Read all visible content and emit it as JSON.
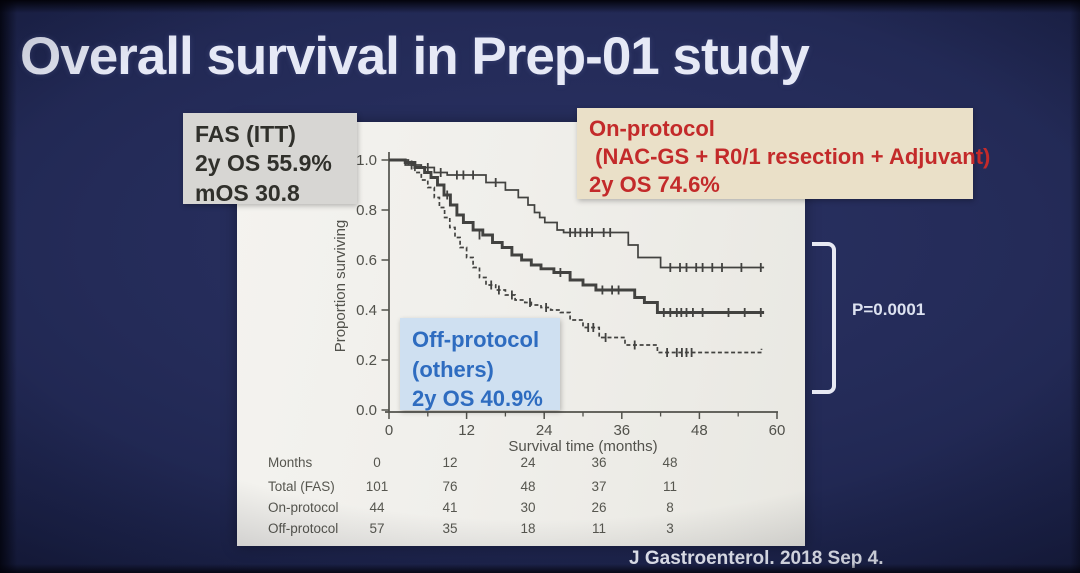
{
  "slide": {
    "title": "Overall survival in Prep-01 study",
    "citation": "J Gastroenterol. 2018 Sep 4."
  },
  "annotations": {
    "fas_box": {
      "lines": [
        "FAS (ITT)",
        "2y OS 55.9%",
        "mOS 30.8"
      ]
    },
    "on_protocol_box": {
      "lines": [
        "On-protocol",
        " (NAC-GS + R0/1 resection + Adjuvant)",
        "2y OS 74.6%"
      ]
    },
    "off_protocol_box": {
      "lines": [
        "Off-protocol",
        "(others)",
        "2y OS 40.9%"
      ]
    },
    "p_value": "P=0.0001"
  },
  "colors": {
    "background_navy": "#242b58",
    "panel_white": "#f0efeb",
    "fas_box_bg": "#d7d6d3",
    "on_box_bg": "#eae0c8",
    "on_text_red": "#c32a2a",
    "off_box_bg": "#cfe0f1",
    "off_text_blue": "#2e6cc0",
    "curve_black": "#343432",
    "axis_gray": "#45453f",
    "title_white": "#e6e9f6"
  },
  "chart_data": {
    "type": "line",
    "subtype": "kaplan-meier-step",
    "xlabel": "Survival time (months)",
    "ylabel": "Proportion surviving",
    "xlim": [
      0,
      60
    ],
    "ylim": [
      0.0,
      1.0
    ],
    "xticks": [
      0,
      12,
      24,
      36,
      48,
      60
    ],
    "xticks_minor": [
      6,
      18,
      30,
      42,
      54
    ],
    "yticks": [
      0.0,
      0.2,
      0.4,
      0.6,
      0.8,
      1.0
    ],
    "grid": false,
    "legend_position": "none",
    "series": [
      {
        "name": "On-protocol",
        "style": "solid-thin",
        "two_year_os_pct": 74.6,
        "points": [
          [
            0,
            1.0
          ],
          [
            3,
            0.98
          ],
          [
            5,
            0.97
          ],
          [
            7,
            0.95
          ],
          [
            9,
            0.94
          ],
          [
            15,
            0.91
          ],
          [
            18,
            0.88
          ],
          [
            20,
            0.85
          ],
          [
            21.5,
            0.82
          ],
          [
            22.5,
            0.79
          ],
          [
            23.3,
            0.77
          ],
          [
            24.1,
            0.75
          ],
          [
            26,
            0.72
          ],
          [
            27,
            0.71
          ],
          [
            37,
            0.66
          ],
          [
            38.5,
            0.61
          ],
          [
            42,
            0.57
          ],
          [
            58,
            0.57
          ]
        ],
        "censor_marks": [
          [
            3.5,
            0.98
          ],
          [
            6,
            0.97
          ],
          [
            8,
            0.95
          ],
          [
            10.5,
            0.94
          ],
          [
            11.5,
            0.94
          ],
          [
            13,
            0.94
          ],
          [
            16.5,
            0.91
          ],
          [
            28,
            0.71
          ],
          [
            28.8,
            0.71
          ],
          [
            29.6,
            0.71
          ],
          [
            30.6,
            0.71
          ],
          [
            31.4,
            0.71
          ],
          [
            33.2,
            0.71
          ],
          [
            34.2,
            0.71
          ],
          [
            43.5,
            0.57
          ],
          [
            45,
            0.57
          ],
          [
            46,
            0.57
          ],
          [
            47.5,
            0.57
          ],
          [
            48.5,
            0.57
          ],
          [
            50,
            0.57
          ],
          [
            51.5,
            0.57
          ],
          [
            54.5,
            0.57
          ],
          [
            57.5,
            0.57
          ]
        ]
      },
      {
        "name": "Total (FAS)",
        "style": "solid-thick",
        "two_year_os_pct": 55.9,
        "median_os_months": 30.8,
        "points": [
          [
            0,
            1.0
          ],
          [
            2.5,
            0.99
          ],
          [
            4,
            0.97
          ],
          [
            5.5,
            0.95
          ],
          [
            6.5,
            0.93
          ],
          [
            7.5,
            0.9
          ],
          [
            8.5,
            0.86
          ],
          [
            9.5,
            0.82
          ],
          [
            10.5,
            0.78
          ],
          [
            11.5,
            0.75
          ],
          [
            13,
            0.72
          ],
          [
            14.5,
            0.7
          ],
          [
            16,
            0.67
          ],
          [
            17.5,
            0.65
          ],
          [
            19,
            0.62
          ],
          [
            20.5,
            0.6
          ],
          [
            22,
            0.58
          ],
          [
            23.5,
            0.565
          ],
          [
            25.5,
            0.55
          ],
          [
            28,
            0.52
          ],
          [
            30,
            0.5
          ],
          [
            32,
            0.48
          ],
          [
            38,
            0.45
          ],
          [
            39.5,
            0.43
          ],
          [
            41.5,
            0.39
          ],
          [
            58,
            0.39
          ]
        ],
        "censor_marks": [
          [
            9,
            0.86
          ],
          [
            14,
            0.7
          ],
          [
            26.5,
            0.55
          ],
          [
            33,
            0.48
          ],
          [
            34.5,
            0.48
          ],
          [
            35.5,
            0.48
          ],
          [
            42.5,
            0.39
          ],
          [
            43.5,
            0.39
          ],
          [
            44.5,
            0.39
          ],
          [
            45.2,
            0.39
          ],
          [
            46,
            0.39
          ],
          [
            47,
            0.39
          ],
          [
            48.5,
            0.39
          ],
          [
            52.5,
            0.39
          ],
          [
            55,
            0.39
          ],
          [
            57.5,
            0.39
          ]
        ]
      },
      {
        "name": "Off-protocol",
        "style": "dashed",
        "two_year_os_pct": 40.9,
        "points": [
          [
            0,
            1.0
          ],
          [
            2.5,
            0.98
          ],
          [
            4,
            0.95
          ],
          [
            5,
            0.92
          ],
          [
            6,
            0.89
          ],
          [
            7,
            0.85
          ],
          [
            7.8,
            0.81
          ],
          [
            8.6,
            0.77
          ],
          [
            9.4,
            0.73
          ],
          [
            10.2,
            0.69
          ],
          [
            11,
            0.65
          ],
          [
            12,
            0.61
          ],
          [
            13,
            0.57
          ],
          [
            14,
            0.53
          ],
          [
            15,
            0.5
          ],
          [
            16.5,
            0.48
          ],
          [
            18,
            0.46
          ],
          [
            19.5,
            0.44
          ],
          [
            21,
            0.43
          ],
          [
            22,
            0.42
          ],
          [
            23.5,
            0.41
          ],
          [
            25,
            0.4
          ],
          [
            26.5,
            0.39
          ],
          [
            28,
            0.36
          ],
          [
            30,
            0.33
          ],
          [
            32.5,
            0.29
          ],
          [
            36.5,
            0.26
          ],
          [
            41.5,
            0.23
          ],
          [
            57,
            0.23
          ],
          [
            57.6,
            0.245
          ]
        ],
        "censor_marks": [
          [
            15.8,
            0.5
          ],
          [
            17,
            0.48
          ],
          [
            19,
            0.46
          ],
          [
            21.8,
            0.43
          ],
          [
            24.3,
            0.41
          ],
          [
            30.8,
            0.33
          ],
          [
            31.6,
            0.33
          ],
          [
            33.5,
            0.29
          ],
          [
            38,
            0.26
          ],
          [
            43,
            0.23
          ],
          [
            44.5,
            0.23
          ],
          [
            45.3,
            0.23
          ],
          [
            46,
            0.23
          ],
          [
            46.8,
            0.23
          ]
        ]
      }
    ],
    "risk_table": {
      "header_label": "Months",
      "header_values": [
        "0",
        "12",
        "24",
        "36",
        "48"
      ],
      "rows": [
        {
          "label": "Total (FAS)",
          "values": [
            "101",
            "76",
            "48",
            "37",
            "11"
          ]
        },
        {
          "label": "On-protocol",
          "values": [
            "44",
            "41",
            "30",
            "26",
            "8"
          ]
        },
        {
          "label": "Off-protocol",
          "values": [
            "57",
            "35",
            "18",
            "11",
            "3"
          ]
        }
      ]
    }
  }
}
